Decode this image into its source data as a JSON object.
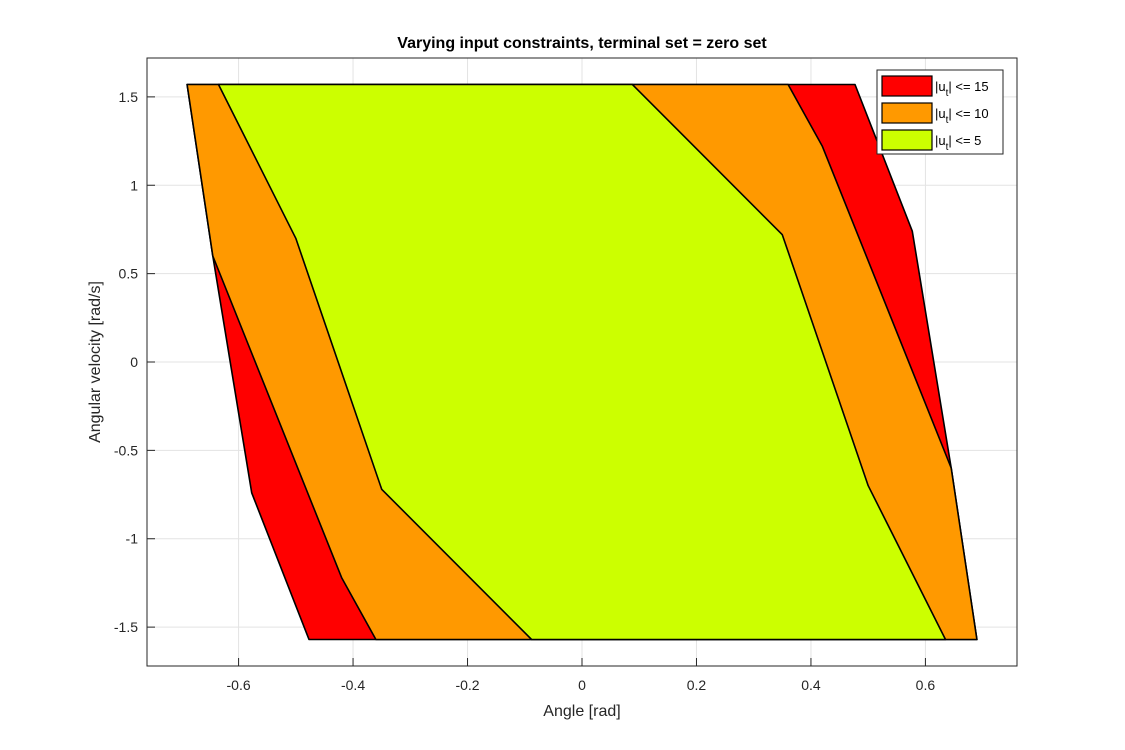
{
  "chart_data": {
    "type": "area",
    "title": "Varying input constraints,  terminal set = zero set",
    "xlabel": "Angle [rad]",
    "ylabel": "Angular velocity [rad/s]",
    "xlim": [
      -0.76,
      0.76
    ],
    "ylim": [
      -1.72,
      1.72
    ],
    "xticks": [
      -0.6,
      -0.4,
      -0.2,
      0,
      0.2,
      0.4,
      0.6
    ],
    "xtick_labels": [
      "-0.6",
      "-0.4",
      "-0.2",
      "0",
      "0.2",
      "0.4",
      "0.6"
    ],
    "yticks": [
      1.5,
      1,
      0.5,
      0,
      -0.5,
      -1,
      -1.5
    ],
    "ytick_labels": [
      "1.5",
      "1",
      "0.5",
      "0",
      "-0.5",
      "-1",
      "-1.5"
    ],
    "grid": true,
    "legend_position": "top-right",
    "series": [
      {
        "label_main": "|u",
        "label_sub": "t",
        "label_rest": "| <= 15",
        "color": "#ff0000",
        "polygon": [
          [
            -0.69,
            1.57
          ],
          [
            0.477,
            1.57
          ],
          [
            0.577,
            0.74
          ],
          [
            0.645,
            -0.6
          ],
          [
            0.69,
            -1.57
          ],
          [
            -0.477,
            -1.57
          ],
          [
            -0.577,
            -0.74
          ],
          [
            -0.645,
            0.6
          ]
        ]
      },
      {
        "label_main": "|u",
        "label_sub": "t",
        "label_rest": "| <= 10",
        "color": "#ff9900",
        "polygon": [
          [
            -0.69,
            1.57
          ],
          [
            0.36,
            1.57
          ],
          [
            0.42,
            1.22
          ],
          [
            0.645,
            -0.6
          ],
          [
            0.69,
            -1.57
          ],
          [
            -0.36,
            -1.57
          ],
          [
            -0.42,
            -1.22
          ],
          [
            -0.645,
            0.6
          ]
        ]
      },
      {
        "label_main": "|u",
        "label_sub": "t",
        "label_rest": "| <=  5",
        "color": "#ccff00",
        "polygon": [
          [
            -0.635,
            1.57
          ],
          [
            0.088,
            1.57
          ],
          [
            0.35,
            0.72
          ],
          [
            0.5,
            -0.7
          ],
          [
            0.635,
            -1.57
          ],
          [
            -0.088,
            -1.57
          ],
          [
            -0.35,
            -0.72
          ],
          [
            -0.5,
            0.7
          ]
        ]
      }
    ]
  }
}
